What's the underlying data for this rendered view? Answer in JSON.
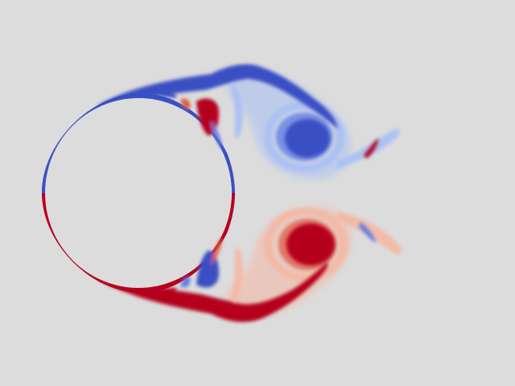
{
  "colors": {
    "background": "#dcdcdc",
    "negative_strong": "#3a4fc4",
    "negative_mid": "#5f7ce6",
    "negative_light": "#a9c0f4",
    "positive_strong": "#b5001f",
    "positive_mid": "#e05a45",
    "positive_light": "#f5b7a2"
  }
}
